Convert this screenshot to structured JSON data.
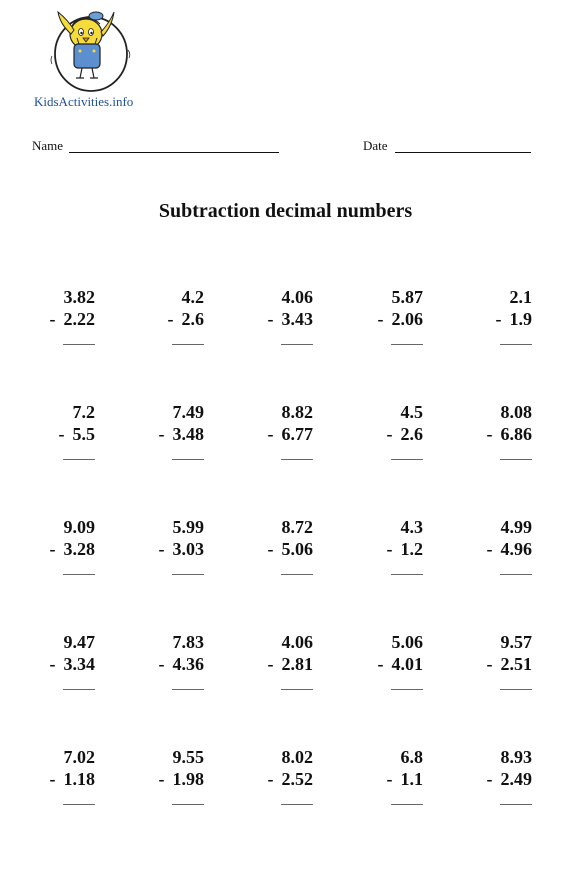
{
  "site": {
    "name": "KidsActivities.info"
  },
  "header": {
    "name_label": "Name",
    "date_label": "Date"
  },
  "title": "Subtraction decimal numbers",
  "operator": "-",
  "rows": [
    [
      {
        "top": "3.82",
        "bottom": "2.22"
      },
      {
        "top": "4.2",
        "bottom": "2.6"
      },
      {
        "top": "4.06",
        "bottom": "3.43"
      },
      {
        "top": "5.87",
        "bottom": "2.06"
      },
      {
        "top": "2.1",
        "bottom": "1.9"
      }
    ],
    [
      {
        "top": "7.2",
        "bottom": "5.5"
      },
      {
        "top": "7.49",
        "bottom": "3.48"
      },
      {
        "top": "8.82",
        "bottom": "6.77"
      },
      {
        "top": "4.5",
        "bottom": "2.6"
      },
      {
        "top": "8.08",
        "bottom": "6.86"
      }
    ],
    [
      {
        "top": "9.09",
        "bottom": "3.28"
      },
      {
        "top": "5.99",
        "bottom": "3.03"
      },
      {
        "top": "8.72",
        "bottom": "5.06"
      },
      {
        "top": "4.3",
        "bottom": "1.2"
      },
      {
        "top": "4.99",
        "bottom": "4.96"
      }
    ],
    [
      {
        "top": "9.47",
        "bottom": "3.34"
      },
      {
        "top": "7.83",
        "bottom": "4.36"
      },
      {
        "top": "4.06",
        "bottom": "2.81"
      },
      {
        "top": "5.06",
        "bottom": "4.01"
      },
      {
        "top": "9.57",
        "bottom": "2.51"
      }
    ],
    [
      {
        "top": "7.02",
        "bottom": "1.18"
      },
      {
        "top": "9.55",
        "bottom": "1.98"
      },
      {
        "top": "8.02",
        "bottom": "2.52"
      },
      {
        "top": "6.8",
        "bottom": "1.1"
      },
      {
        "top": "8.93",
        "bottom": "2.49"
      }
    ]
  ]
}
